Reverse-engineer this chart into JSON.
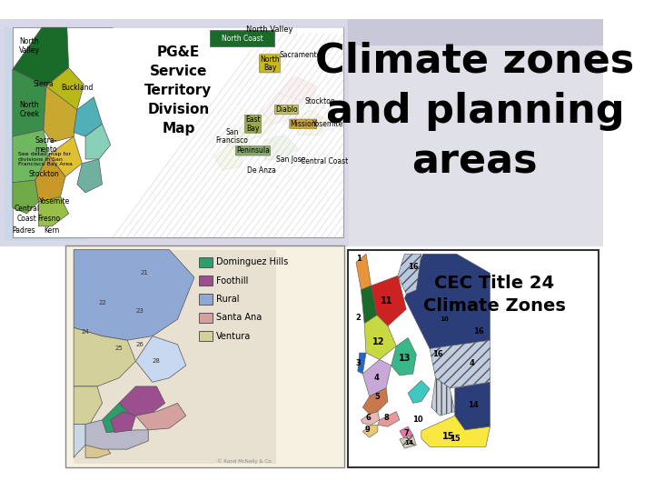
{
  "title_line1": "Climate zones",
  "title_line2": "and planning",
  "title_line3": "areas",
  "title_fontsize": 32,
  "title_fontweight": "bold",
  "cec_line1": "CEC Title 24",
  "cec_line2": "Climate Zones",
  "cec_fontsize": 14,
  "cec_fontweight": "bold",
  "background_color": "#ffffff",
  "slide_bg": "#f0f0f0",
  "legend_items": [
    {
      "label": "Dominguez Hills",
      "color": "#2d9e6b"
    },
    {
      "label": "Foothill",
      "color": "#9b4f8e"
    },
    {
      "label": "Rural",
      "color": "#8fa8d4"
    },
    {
      "label": "Santa Ana",
      "color": "#d4a0a0"
    },
    {
      "label": "Ventura",
      "color": "#d4d09a"
    }
  ],
  "pge_title": "PG&E\nService\nTerritory\nDivision\nMap",
  "pge_fontsize": 11,
  "left_panel_bg": "#e8e8f0",
  "map_border": "#333333",
  "bottom_left_bg": "#f5f0e0",
  "bottom_right_bg": "#ffffff",
  "gradient_top": "#c8c8d8",
  "gradient_mid": "#e0e0e8"
}
